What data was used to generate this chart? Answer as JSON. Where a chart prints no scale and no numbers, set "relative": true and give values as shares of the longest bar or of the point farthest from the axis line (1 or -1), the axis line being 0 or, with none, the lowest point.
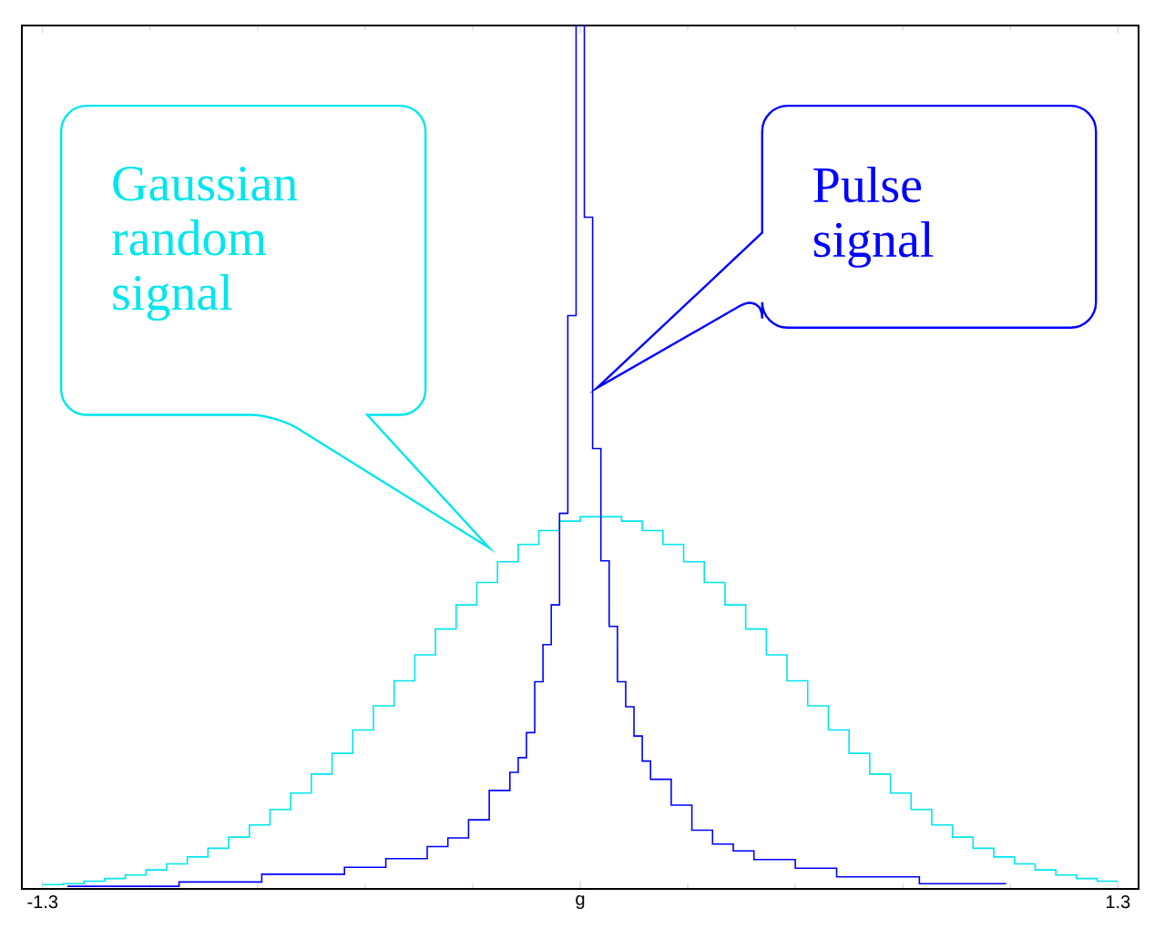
{
  "chart_data": {
    "type": "step",
    "relative": true,
    "xlim": [
      -1.35,
      1.35
    ],
    "xticks": [
      {
        "value": -1.3,
        "label": "-1.3"
      },
      {
        "value": 0,
        "label": "g"
      },
      {
        "value": 1.3,
        "label": "1.3"
      }
    ],
    "series": [
      {
        "color": "#00e5ee",
        "x": [
          -1.3,
          -1.25,
          -1.2,
          -1.15,
          -1.1,
          -1.05,
          -1.0,
          -0.95,
          -0.9,
          -0.85,
          -0.8,
          -0.75,
          -0.7,
          -0.65,
          -0.6,
          -0.55,
          -0.5,
          -0.45,
          -0.4,
          -0.35,
          -0.3,
          -0.25,
          -0.2,
          -0.15,
          -0.1,
          -0.05,
          0,
          0.05,
          0.1,
          0.15,
          0.2,
          0.25,
          0.3,
          0.35,
          0.4,
          0.45,
          0.5,
          0.55,
          0.6,
          0.65,
          0.7,
          0.75,
          0.8,
          0.85,
          0.9,
          0.95,
          1.0,
          1.05,
          1.1,
          1.15,
          1.2,
          1.25,
          1.3
        ],
        "values": [
          0.005,
          0.006,
          0.009,
          0.012,
          0.016,
          0.022,
          0.029,
          0.037,
          0.047,
          0.06,
          0.074,
          0.092,
          0.111,
          0.133,
          0.157,
          0.184,
          0.212,
          0.241,
          0.271,
          0.301,
          0.329,
          0.355,
          0.379,
          0.399,
          0.415,
          0.426,
          0.431,
          0.431,
          0.426,
          0.415,
          0.399,
          0.379,
          0.355,
          0.329,
          0.301,
          0.271,
          0.241,
          0.212,
          0.184,
          0.157,
          0.133,
          0.111,
          0.092,
          0.074,
          0.06,
          0.047,
          0.037,
          0.029,
          0.022,
          0.016,
          0.012,
          0.009,
          0.009
        ]
      },
      {
        "color": "#0000ff",
        "x": [
          -1.24,
          -0.97,
          -0.77,
          -0.57,
          -0.47,
          -0.37,
          -0.32,
          -0.27,
          -0.22,
          -0.17,
          -0.15,
          -0.13,
          -0.11,
          -0.09,
          -0.07,
          -0.05,
          -0.03,
          -0.01,
          0.01,
          0.03,
          0.05,
          0.07,
          0.09,
          0.11,
          0.13,
          0.15,
          0.17,
          0.22,
          0.27,
          0.32,
          0.37,
          0.42,
          0.52,
          0.62,
          0.82,
          1.03
        ],
        "values": [
          0.003,
          0.008,
          0.017,
          0.025,
          0.035,
          0.049,
          0.059,
          0.08,
          0.114,
          0.135,
          0.152,
          0.181,
          0.24,
          0.283,
          0.329,
          0.435,
          0.664,
          1.0,
          0.778,
          0.51,
          0.38,
          0.304,
          0.24,
          0.211,
          0.177,
          0.148,
          0.127,
          0.097,
          0.068,
          0.052,
          0.044,
          0.034,
          0.024,
          0.014,
          0.006,
          0.006
        ]
      }
    ],
    "annotations": [
      "Gaussian random signal",
      "Pulse signal"
    ]
  }
}
